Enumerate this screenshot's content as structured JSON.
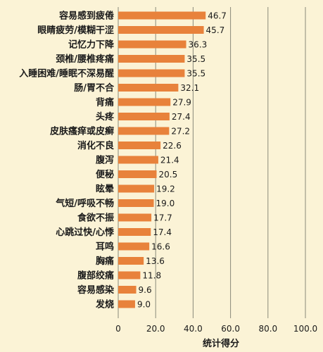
{
  "chart_data": {
    "type": "bar",
    "orientation": "horizontal",
    "categories": [
      "容易感到疲倦",
      "眼睛疲劳/模糊干涩",
      "记忆力下降",
      "颈椎/腰椎疼痛",
      "入睡困难/睡眠不深易醒",
      "肠/胃不合",
      "背痛",
      "头疼",
      "皮肤瘙痒或皮癣",
      "消化不良",
      "腹泻",
      "便秘",
      "眩晕",
      "气短/呼吸不畅",
      "食欲不振",
      "心跳过快/心悸",
      "耳鸣",
      "胸痛",
      "腹部绞痛",
      "容易感染",
      "发烧"
    ],
    "values": [
      46.7,
      45.7,
      36.3,
      35.5,
      35.5,
      32.1,
      27.9,
      27.4,
      27.2,
      22.6,
      21.4,
      20.5,
      19.2,
      19.0,
      17.7,
      17.4,
      16.6,
      13.6,
      11.8,
      9.6,
      9.0
    ],
    "value_labels": [
      "46.7",
      "45.7",
      "36.3",
      "35.5",
      "35.5",
      "32.1",
      "27.9",
      "27.4",
      "27.2",
      "22.6",
      "21.4",
      "20.5",
      "19.2",
      "19.0",
      "17.7",
      "17.4",
      "16.6",
      "13.6",
      "11.8",
      "9.6",
      "9.0"
    ],
    "xlabel": "统计得分",
    "xlim": [
      0,
      100
    ],
    "xticks": [
      0,
      20,
      40,
      60,
      80,
      100
    ],
    "xtick_labels": [
      "0",
      "20.0",
      "40.0",
      "60.0",
      "80.0",
      "100.0"
    ],
    "grid": "vertical",
    "colors": {
      "bar": "#E8823B",
      "background": "#FBF3D6",
      "grid": "#8a8a7a"
    }
  }
}
